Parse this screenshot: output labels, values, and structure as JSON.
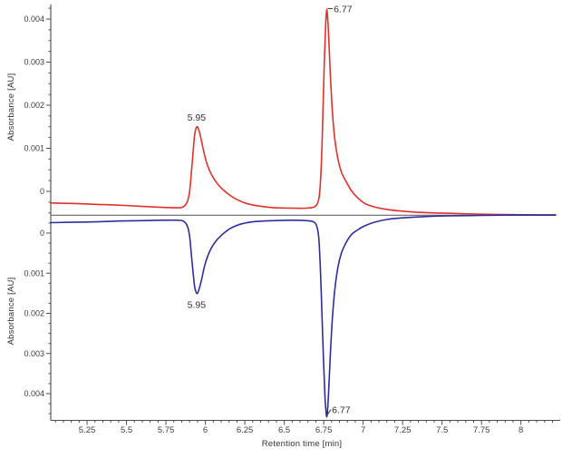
{
  "chart_data": {
    "type": "line",
    "title": "",
    "xlabel": "Retention time [min]",
    "description": "Mirrored chromatogram: red trace plotted upward in top panel, blue trace plotted downward in bottom panel, sharing one x-axis; both converge onto a gray divider baseline at the right.",
    "x_axis": {
      "range": [
        5.02,
        8.22
      ],
      "major_ticks": [
        5.25,
        5.5,
        5.75,
        6,
        6.25,
        6.5,
        6.75,
        7,
        7.25,
        7.5,
        7.75,
        8
      ],
      "major_tick_labels": [
        "5.25",
        "5.5",
        "5.75",
        "6",
        "6.25",
        "6.5",
        "6.75",
        "7",
        "7.25",
        "7.5",
        "7.75",
        "8"
      ],
      "minor_step": 0.05
    },
    "y_axis_top": {
      "label": "Absorbance [AU]",
      "direction": "up",
      "range": [
        -0.00055,
        0.00434
      ],
      "major_ticks": [
        0,
        0.001,
        0.002,
        0.003,
        0.004
      ],
      "tick_labels": [
        "0",
        "0.001",
        "0.002",
        "0.003",
        "0.004"
      ],
      "minor_step": 0.00025
    },
    "y_axis_bottom": {
      "label": "Absorbance [AU]",
      "direction": "down",
      "range": [
        -0.00045,
        0.00466
      ],
      "major_ticks": [
        0,
        0.001,
        0.002,
        0.003,
        0.004
      ],
      "tick_labels": [
        "0",
        "0.001",
        "0.002",
        "0.003",
        "0.004"
      ],
      "minor_step": 0.00025
    },
    "divider_color": "#666666",
    "axis_color": "#4d4d4d",
    "tick_text_color": "#3d3d3d",
    "peak_text_color": "#333333",
    "series": [
      {
        "name": "red-trace",
        "panel": "top",
        "color": "#e0312b",
        "peaks": [
          {
            "rt": 5.95,
            "label": "5.95",
            "apex_au": 0.0015
          },
          {
            "rt": 6.77,
            "label": "6.77",
            "apex_au": 0.00421
          }
        ],
        "points": [
          [
            5.02,
            -0.00027
          ],
          [
            5.15,
            -0.00028
          ],
          [
            5.3,
            -0.0003
          ],
          [
            5.45,
            -0.00032
          ],
          [
            5.6,
            -0.00035
          ],
          [
            5.72,
            -0.00037
          ],
          [
            5.82,
            -0.00038
          ],
          [
            5.86,
            -0.00036
          ],
          [
            5.885,
            -0.00024
          ],
          [
            5.9,
            0.0
          ],
          [
            5.915,
            0.0006
          ],
          [
            5.93,
            0.00125
          ],
          [
            5.94,
            0.00145
          ],
          [
            5.95,
            0.0015
          ],
          [
            5.962,
            0.00138
          ],
          [
            5.975,
            0.00118
          ],
          [
            5.99,
            0.00092
          ],
          [
            6.01,
            0.00064
          ],
          [
            6.04,
            0.00038
          ],
          [
            6.08,
            0.00016
          ],
          [
            6.13,
            -2e-05
          ],
          [
            6.19,
            -0.00017
          ],
          [
            6.26,
            -0.00028
          ],
          [
            6.34,
            -0.00034
          ],
          [
            6.44,
            -0.00038
          ],
          [
            6.55,
            -0.00039
          ],
          [
            6.64,
            -0.00039
          ],
          [
            6.69,
            -0.00036
          ],
          [
            6.71,
            -0.00028
          ],
          [
            6.722,
            -0.0001
          ],
          [
            6.732,
            0.0004
          ],
          [
            6.742,
            0.0014
          ],
          [
            6.752,
            0.0028
          ],
          [
            6.762,
            0.00385
          ],
          [
            6.768,
            0.00418
          ],
          [
            6.77,
            0.00421
          ],
          [
            6.774,
            0.00408
          ],
          [
            6.782,
            0.00355
          ],
          [
            6.792,
            0.00272
          ],
          [
            6.805,
            0.00185
          ],
          [
            6.82,
            0.00122
          ],
          [
            6.84,
            0.00075
          ],
          [
            6.862,
            0.00045
          ],
          [
            6.89,
            0.00024
          ],
          [
            6.925,
            2e-05
          ],
          [
            6.965,
            -0.00015
          ],
          [
            7.01,
            -0.00028
          ],
          [
            7.07,
            -0.00036
          ],
          [
            7.15,
            -0.00042
          ],
          [
            7.25,
            -0.00046
          ],
          [
            7.38,
            -0.00049
          ],
          [
            7.55,
            -0.00051
          ],
          [
            7.75,
            -0.00053
          ],
          [
            7.95,
            -0.00054
          ],
          [
            8.1,
            -0.000545
          ],
          [
            8.22,
            -0.00055
          ]
        ]
      },
      {
        "name": "blue-trace",
        "panel": "bottom",
        "color": "#2b2f9e",
        "peaks": [
          {
            "rt": 5.95,
            "label": "5.95",
            "apex_au": 0.0015
          },
          {
            "rt": 6.77,
            "label": "6.77",
            "apex_au": 0.00457
          }
        ],
        "points": [
          [
            5.02,
            -0.00026
          ],
          [
            5.15,
            -0.00027
          ],
          [
            5.3,
            -0.00028
          ],
          [
            5.45,
            -0.0003
          ],
          [
            5.6,
            -0.00031
          ],
          [
            5.72,
            -0.00032
          ],
          [
            5.82,
            -0.00032
          ],
          [
            5.86,
            -0.0003
          ],
          [
            5.885,
            -0.00018
          ],
          [
            5.9,
            8e-05
          ],
          [
            5.915,
            0.0007
          ],
          [
            5.93,
            0.00128
          ],
          [
            5.94,
            0.00146
          ],
          [
            5.95,
            0.0015
          ],
          [
            5.963,
            0.00136
          ],
          [
            5.978,
            0.00112
          ],
          [
            5.995,
            0.00082
          ],
          [
            6.02,
            0.00052
          ],
          [
            6.055,
            0.00026
          ],
          [
            6.1,
            6e-05
          ],
          [
            6.16,
            -0.00012
          ],
          [
            6.23,
            -0.00023
          ],
          [
            6.32,
            -0.00029
          ],
          [
            6.43,
            -0.00031
          ],
          [
            6.55,
            -0.00032
          ],
          [
            6.64,
            -0.00031
          ],
          [
            6.685,
            -0.00028
          ],
          [
            6.705,
            -0.00018
          ],
          [
            6.718,
            0.0001
          ],
          [
            6.728,
            0.0008
          ],
          [
            6.738,
            0.0019
          ],
          [
            6.748,
            0.0031
          ],
          [
            6.758,
            0.00408
          ],
          [
            6.766,
            0.0045
          ],
          [
            6.77,
            0.00457
          ],
          [
            6.775,
            0.00438
          ],
          [
            6.783,
            0.00378
          ],
          [
            6.793,
            0.00295
          ],
          [
            6.805,
            0.00212
          ],
          [
            6.82,
            0.00142
          ],
          [
            6.84,
            0.00085
          ],
          [
            6.862,
            0.0005
          ],
          [
            6.89,
            0.00025
          ],
          [
            6.925,
            4e-05
          ],
          [
            6.965,
            -8e-05
          ],
          [
            7.01,
            -0.00018
          ],
          [
            7.07,
            -0.00027
          ],
          [
            7.15,
            -0.00034
          ],
          [
            7.25,
            -0.00038
          ],
          [
            7.38,
            -0.00041
          ],
          [
            7.55,
            -0.00043
          ],
          [
            7.75,
            -0.00044
          ],
          [
            7.95,
            -0.00045
          ],
          [
            8.1,
            -0.00045
          ],
          [
            8.22,
            -0.00045
          ]
        ]
      }
    ]
  }
}
